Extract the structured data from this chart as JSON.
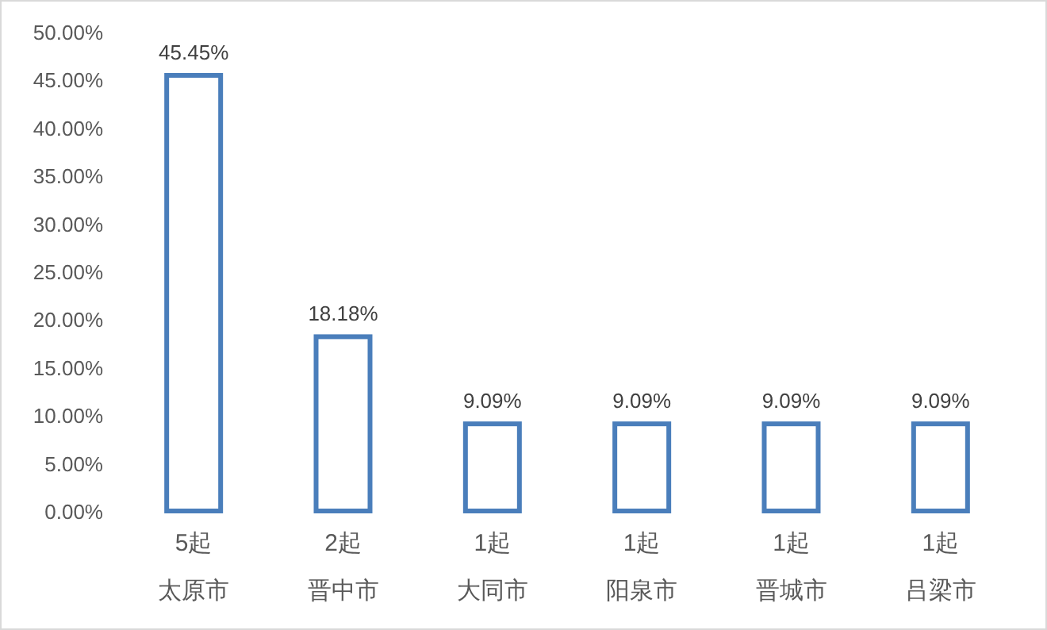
{
  "chart_data": {
    "type": "bar",
    "categories": [
      "太原市",
      "晋中市",
      "大同市",
      "阳泉市",
      "晋城市",
      "吕梁市"
    ],
    "annotations": [
      "5起",
      "2起",
      "1起",
      "1起",
      "1起",
      "1起"
    ],
    "values": [
      45.45,
      18.18,
      9.09,
      9.09,
      9.09,
      9.09
    ],
    "value_labels": [
      "45.45%",
      "18.18%",
      "9.09%",
      "9.09%",
      "9.09%",
      "9.09%"
    ],
    "color": "#4a7ebb",
    "ylim": [
      0,
      50
    ],
    "yticks": [
      {
        "value": 0,
        "label": "0.00%"
      },
      {
        "value": 5,
        "label": "5.00%"
      },
      {
        "value": 10,
        "label": "10.00%"
      },
      {
        "value": 15,
        "label": "15.00%"
      },
      {
        "value": 20,
        "label": "20.00%"
      },
      {
        "value": 25,
        "label": "25.00%"
      },
      {
        "value": 30,
        "label": "30.00%"
      },
      {
        "value": 35,
        "label": "35.00%"
      },
      {
        "value": 40,
        "label": "40.00%"
      },
      {
        "value": 45,
        "label": "45.00%"
      },
      {
        "value": 50,
        "label": "50.00%"
      }
    ],
    "grid": false
  }
}
